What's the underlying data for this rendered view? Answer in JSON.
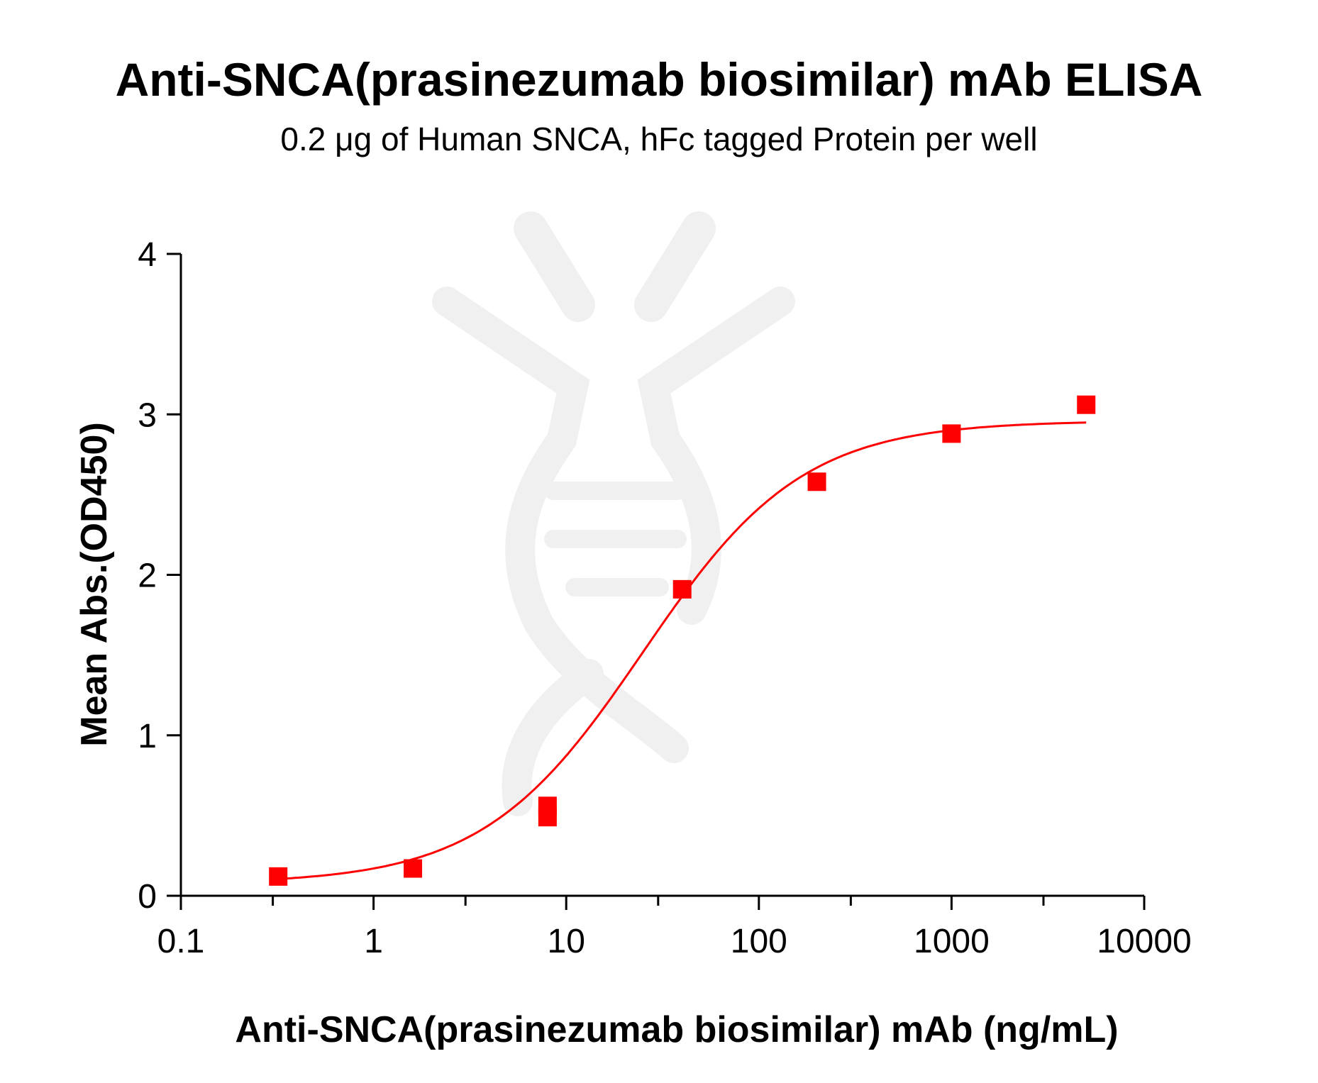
{
  "chart_data": {
    "type": "scatter",
    "title": "Anti-SNCA(prasinezumab biosimilar) mAb ELISA",
    "subtitle": "0.2 μg of Human SNCA, hFc tagged Protein per well",
    "xlabel": "Anti-SNCA(prasinezumab biosimilar) mAb (ng/mL)",
    "ylabel": "Mean Abs.(OD450)",
    "x_scale": "log",
    "xlim": [
      0.1,
      10000
    ],
    "ylim": [
      0,
      4
    ],
    "x_ticks": [
      0.1,
      1,
      10,
      100,
      1000,
      10000
    ],
    "x_tick_labels": [
      "0.1",
      "1",
      "10",
      "100",
      "1000",
      "10000"
    ],
    "y_ticks": [
      0,
      1,
      2,
      3,
      4
    ],
    "y_tick_labels": [
      "0",
      "1",
      "2",
      "3",
      "4"
    ],
    "grid": false,
    "series": [
      {
        "color": "#ff0000",
        "marker": "square",
        "points": [
          {
            "x": 0.32,
            "y": 0.12
          },
          {
            "x": 1.6,
            "y": 0.17
          },
          {
            "x": 8,
            "y": 0.49
          },
          {
            "x": 8,
            "y": 0.56
          },
          {
            "x": 40,
            "y": 1.91
          },
          {
            "x": 200,
            "y": 2.58
          },
          {
            "x": 1000,
            "y": 2.88
          },
          {
            "x": 5000,
            "y": 3.06
          }
        ],
        "fit_curve": {
          "model": "4PL",
          "bottom": 0.075,
          "top": 2.96,
          "ec50": 25,
          "hill": 1.05,
          "x_range": [
            0.32,
            5000
          ]
        }
      }
    ]
  }
}
